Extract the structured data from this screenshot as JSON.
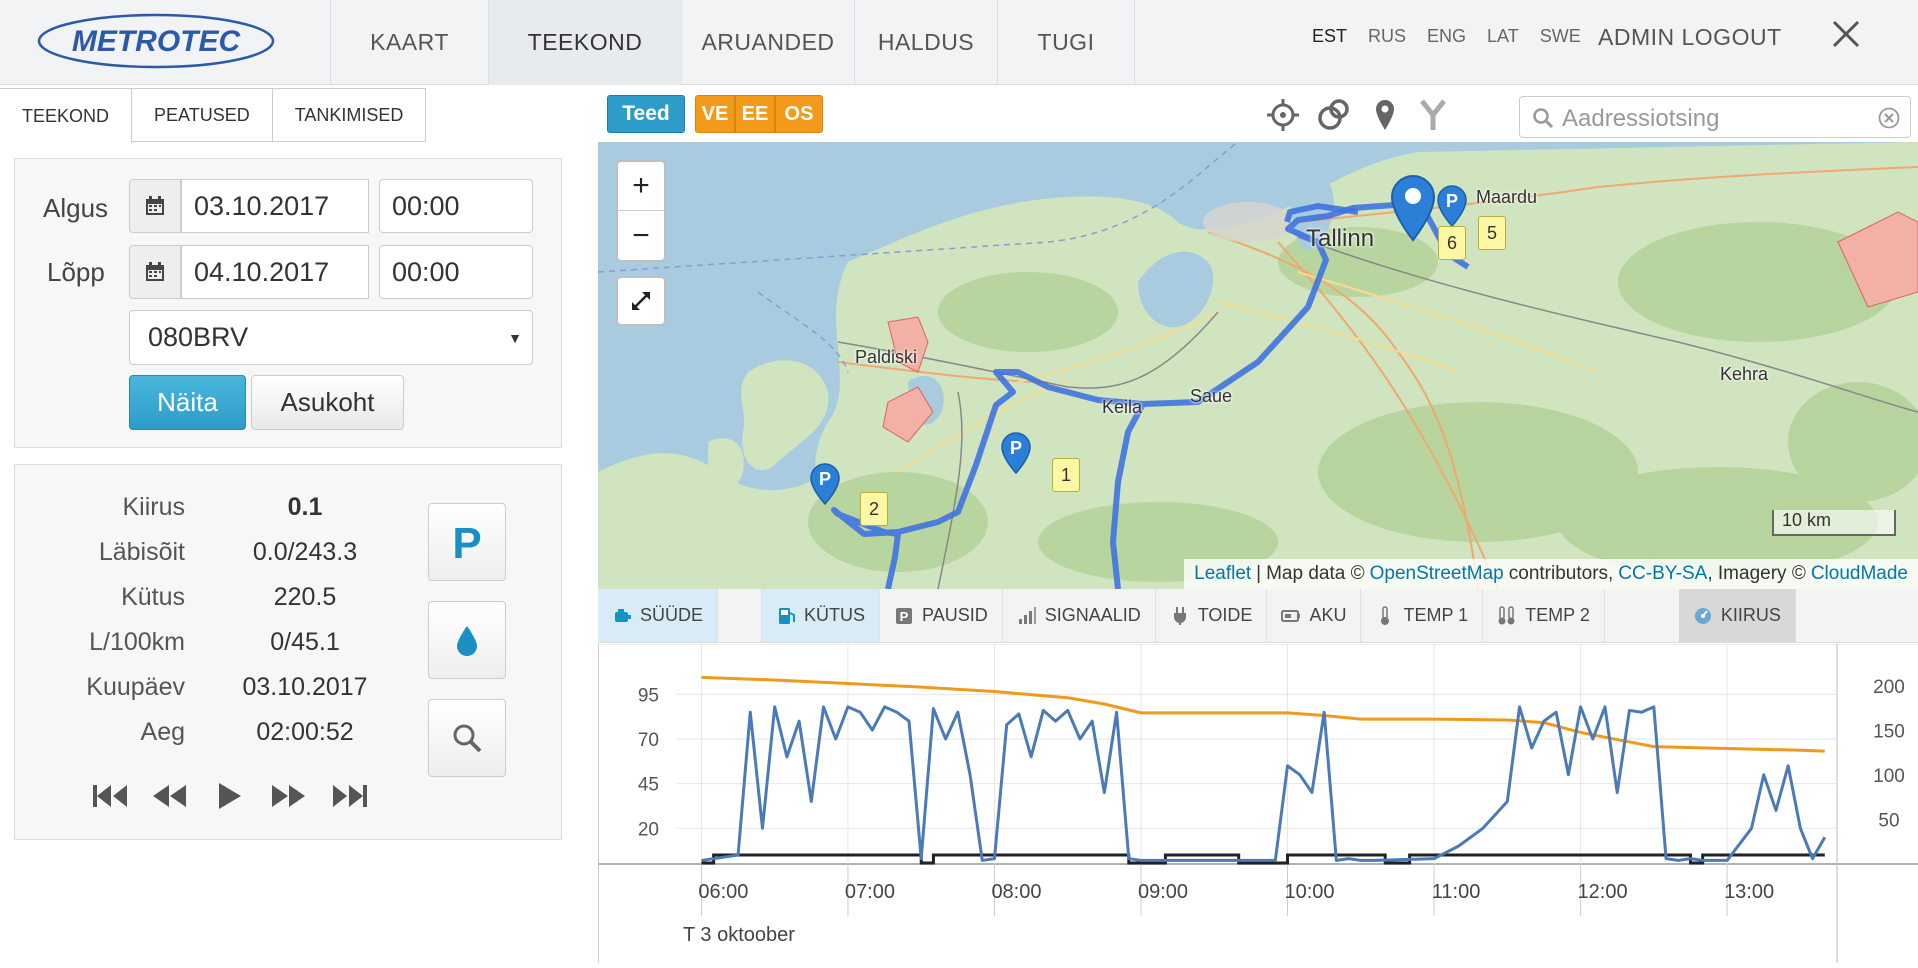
{
  "header": {
    "logo_text": "METROTEC",
    "nav": [
      {
        "label": "KAART",
        "active": false
      },
      {
        "label": "TEEKOND",
        "active": true
      },
      {
        "label": "ARUANDED",
        "active": false
      },
      {
        "label": "HALDUS",
        "active": false
      },
      {
        "label": "TUGI",
        "active": false
      }
    ],
    "languages": [
      {
        "code": "EST",
        "active": true
      },
      {
        "code": "RUS",
        "active": false
      },
      {
        "code": "ENG",
        "active": false
      },
      {
        "code": "LAT",
        "active": false
      },
      {
        "code": "SWE",
        "active": false
      }
    ],
    "admin_logout": "ADMIN LOGOUT"
  },
  "left_tabs": [
    "TEEKOND",
    "PEATUSED",
    "TANKIMISED"
  ],
  "form": {
    "start_label": "Algus",
    "start_date": "03.10.2017",
    "start_time": "00:00",
    "end_label": "Lõpp",
    "end_date": "04.10.2017",
    "end_time": "00:00",
    "vehicle": "080BRV",
    "show_button": "Näita",
    "location_button": "Asukoht"
  },
  "stats": [
    {
      "label": "Kiirus",
      "value": "0.1"
    },
    {
      "label": "Läbisõit",
      "value": "0.0/243.3"
    },
    {
      "label": "Kütus",
      "value": "220.5"
    },
    {
      "label": "L/100km",
      "value": "0/45.1"
    },
    {
      "label": "Kuupäev",
      "value": "03.10.2017"
    },
    {
      "label": "Aeg",
      "value": "02:00:52"
    }
  ],
  "map_toolbar": {
    "teed": "Teed",
    "orange_buttons": [
      "VE",
      "EE",
      "OS"
    ],
    "search_placeholder": "Aadressiotsing"
  },
  "map": {
    "zoom_in": "+",
    "zoom_out": "−",
    "places": [
      {
        "name": "Tallinn",
        "big": true
      },
      {
        "name": "Maardu",
        "big": false
      },
      {
        "name": "Paldiski",
        "big": false
      },
      {
        "name": "Keila",
        "big": false
      },
      {
        "name": "Saue",
        "big": false
      },
      {
        "name": "Kehra",
        "big": false
      }
    ],
    "stop_labels": [
      "1",
      "2",
      "5",
      "6"
    ],
    "scale": "10 km",
    "attribution": {
      "leaflet": "Leaflet",
      "sep": "|",
      "map_data": "Map data ©",
      "osm": "OpenStreetMap",
      "contributors": "contributors,",
      "license": "CC-BY-SA",
      "imagery": ", Imagery ©",
      "cloudmade": "CloudMade"
    }
  },
  "chart_tabs": [
    {
      "label": "SÜÜDE",
      "icon": "engine-icon",
      "state": "active"
    },
    {
      "label": "KÜTUS",
      "icon": "fuel-icon",
      "state": "active"
    },
    {
      "label": "PAUSID",
      "icon": "parking-icon",
      "state": ""
    },
    {
      "label": "SIGNAALID",
      "icon": "signal-icon",
      "state": ""
    },
    {
      "label": "TOIDE",
      "icon": "plug-icon",
      "state": ""
    },
    {
      "label": "AKU",
      "icon": "battery-icon",
      "state": ""
    },
    {
      "label": "TEMP 1",
      "icon": "thermometer-icon",
      "state": ""
    },
    {
      "label": "TEMP 2",
      "icon": "thermometer-double-icon",
      "state": ""
    },
    {
      "label": "KIIRUS",
      "icon": "speedometer-icon",
      "state": "active-gray"
    }
  ],
  "chart_data": {
    "type": "line",
    "x_ticks": [
      "06:00",
      "07:00",
      "08:00",
      "09:00",
      "10:00",
      "11:00",
      "12:00",
      "13:00"
    ],
    "left_axis_ticks": [
      20,
      45,
      70,
      95
    ],
    "right_axis_ticks": [
      50,
      100,
      150,
      200
    ],
    "date_label": "T 3 oktoober",
    "colors": {
      "speed": "#4a7ab8",
      "fuel": "#ee9a1c",
      "ignition": "#222222"
    },
    "series": [
      {
        "name": "KÜTUS",
        "axis": "right",
        "x": [
          "06:00",
          "06:30",
          "07:00",
          "07:30",
          "08:00",
          "08:30",
          "08:45",
          "09:00",
          "09:30",
          "10:00",
          "10:15",
          "10:30",
          "11:00",
          "11:30",
          "11:45",
          "12:00",
          "12:15",
          "12:30",
          "13:00",
          "13:30",
          "13:40"
        ],
        "values": [
          210,
          207,
          203,
          199,
          194,
          187,
          180,
          170,
          170,
          170,
          167,
          163,
          163,
          162,
          159,
          148,
          140,
          132,
          130,
          128,
          127
        ]
      },
      {
        "name": "KIIRUS",
        "axis": "left",
        "x": [
          "06:00",
          "06:15",
          "06:20",
          "06:25",
          "06:30",
          "06:35",
          "06:40",
          "06:45",
          "06:50",
          "06:55",
          "07:00",
          "07:05",
          "07:10",
          "07:15",
          "07:20",
          "07:25",
          "07:30",
          "07:35",
          "07:40",
          "07:45",
          "07:50",
          "07:55",
          "08:00",
          "08:05",
          "08:10",
          "08:15",
          "08:20",
          "08:25",
          "08:30",
          "08:35",
          "08:40",
          "08:45",
          "08:50",
          "08:55",
          "09:00",
          "09:30",
          "09:55",
          "10:00",
          "10:05",
          "10:10",
          "10:15",
          "10:20",
          "10:25",
          "10:30",
          "10:35",
          "11:00",
          "11:10",
          "11:20",
          "11:30",
          "11:35",
          "11:40",
          "11:45",
          "11:50",
          "11:55",
          "12:00",
          "12:05",
          "12:10",
          "12:15",
          "12:20",
          "12:25",
          "12:30",
          "12:35",
          "12:40",
          "12:45",
          "12:50",
          "13:00",
          "13:10",
          "13:15",
          "13:20",
          "13:25",
          "13:30",
          "13:35",
          "13:40"
        ],
        "values": [
          2,
          5,
          85,
          20,
          88,
          60,
          80,
          35,
          88,
          70,
          88,
          85,
          75,
          88,
          85,
          80,
          3,
          87,
          70,
          85,
          50,
          2,
          3,
          78,
          84,
          60,
          86,
          80,
          86,
          70,
          80,
          40,
          85,
          3,
          2,
          2,
          2,
          55,
          50,
          40,
          85,
          2,
          3,
          2,
          2,
          3,
          10,
          20,
          35,
          88,
          65,
          80,
          85,
          50,
          88,
          70,
          88,
          40,
          86,
          85,
          88,
          3,
          2,
          3,
          2,
          2,
          20,
          50,
          30,
          55,
          20,
          3,
          15
        ]
      },
      {
        "name": "SÜÜDE",
        "axis": "left",
        "x": [
          "06:00",
          "06:05",
          "06:10",
          "07:25",
          "07:30",
          "07:35",
          "08:50",
          "08:55",
          "09:00",
          "09:10",
          "09:30",
          "09:40",
          "10:00",
          "10:10",
          "10:35",
          "10:40",
          "10:50",
          "11:00",
          "11:10",
          "11:20",
          "11:25",
          "11:30",
          "11:50",
          "12:00",
          "12:40",
          "12:45",
          "12:50",
          "13:00",
          "13:10",
          "13:30",
          "13:40"
        ],
        "values": [
          0,
          1,
          1,
          1,
          0,
          1,
          1,
          0,
          0,
          1,
          1,
          0,
          1,
          1,
          1,
          0,
          1,
          1,
          1,
          1,
          1,
          1,
          1,
          1,
          1,
          0,
          1,
          1,
          1,
          1,
          1
        ]
      }
    ]
  }
}
